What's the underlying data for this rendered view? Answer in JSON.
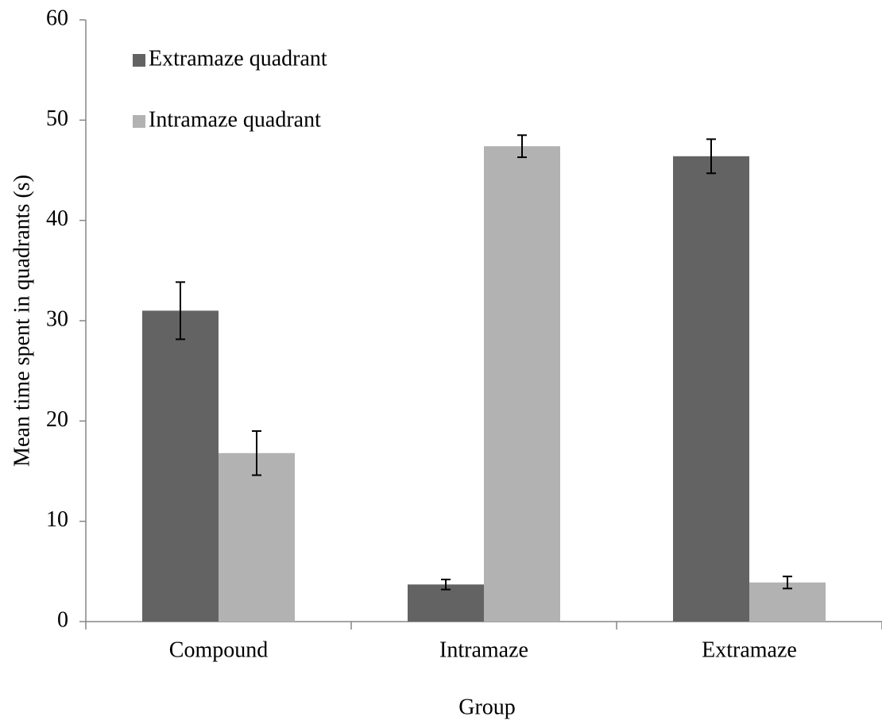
{
  "chart_data": {
    "type": "bar",
    "x_label": "Group",
    "y_label": "Mean time spent in quadrants (s)",
    "categories": [
      "Compound",
      "Intramaze",
      "Extramaze"
    ],
    "series": [
      {
        "name": "Extramaze quadrant",
        "color": "#636363",
        "values": [
          31,
          3.7,
          46.4
        ],
        "errors": [
          2.85,
          0.5,
          1.7
        ]
      },
      {
        "name": "Intramaze quadrant",
        "color": "#b2b2b2",
        "values": [
          16.8,
          47.4,
          3.9
        ],
        "errors": [
          2.2,
          1.1,
          0.6
        ]
      }
    ],
    "ylim": [
      0,
      60
    ],
    "yticks": [
      0,
      10,
      20,
      30,
      40,
      50,
      60
    ],
    "grid": false,
    "legend": "top-left"
  }
}
